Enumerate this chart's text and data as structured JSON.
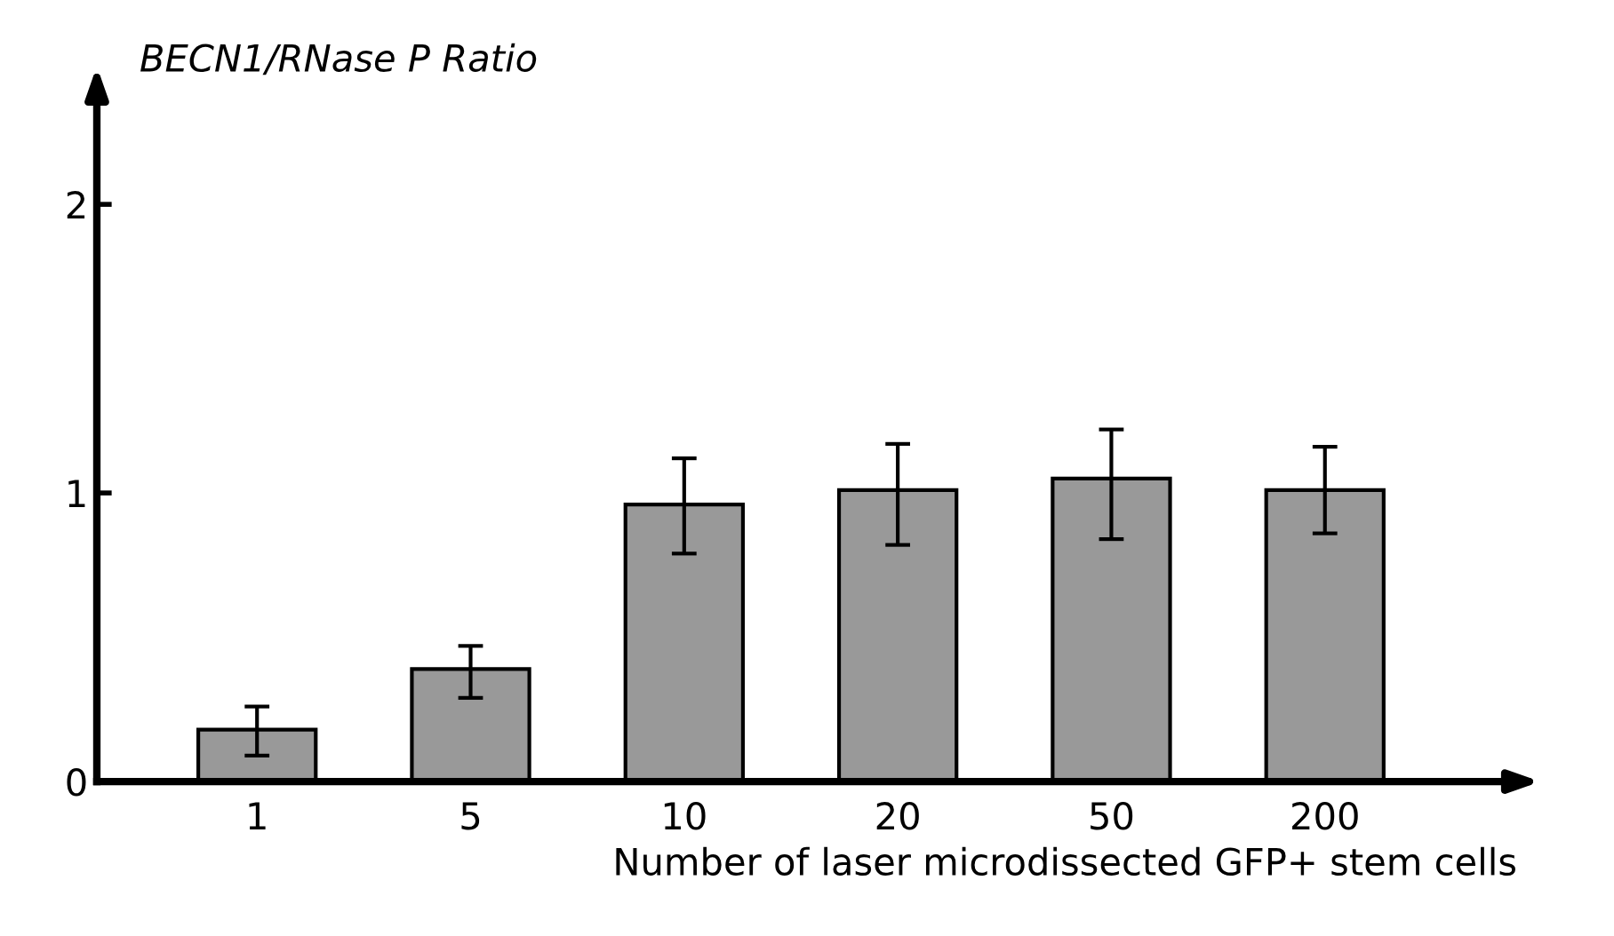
{
  "chart_data": {
    "type": "bar",
    "ylabel": "BECN1/RNase P Ratio",
    "xlabel": "Number of laser microdissected GFP+ stem cells",
    "categories": [
      "1",
      "5",
      "10",
      "20",
      "50",
      "200"
    ],
    "values": [
      0.18,
      0.39,
      0.96,
      1.01,
      1.05,
      1.01
    ],
    "errors": [
      [
        0.09,
        0.26
      ],
      [
        0.29,
        0.47
      ],
      [
        0.79,
        1.12
      ],
      [
        0.82,
        1.17
      ],
      [
        0.84,
        1.22
      ],
      [
        0.86,
        1.16
      ]
    ],
    "color": "#999999",
    "ylim": [
      0,
      2.4
    ],
    "yticks": [
      0,
      1,
      2
    ],
    "grid": false,
    "legend": false
  }
}
